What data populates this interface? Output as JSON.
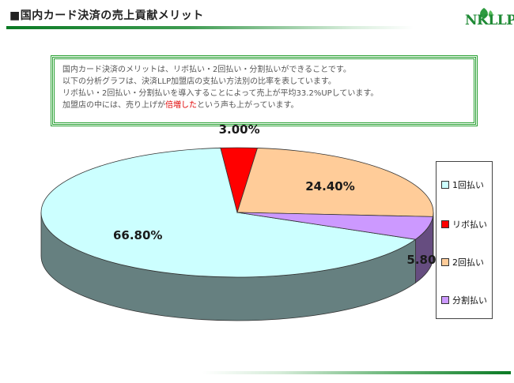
{
  "page": {
    "title": "■国内カード決済の売上貢献メリット",
    "logo": "NKLLP"
  },
  "notes": {
    "line1": "国内カード決済のメリットは、リボ払い・2回払い・分割払いができることです。",
    "line2": "以下の分析グラフは、決済LLP加盟店の支払い方法別の比率を表しています。",
    "line3": "リボ払い・2回払い・分割払いを導入することによって売上が平均33.2%UPしています。",
    "line4_pre": "加盟店の中には、売り上げが",
    "line4_highlight": "倍増した",
    "line4_post": "という声も上がっています。",
    "highlight_color": "#e00000"
  },
  "chart_data": {
    "type": "pie",
    "three_d": true,
    "title": "",
    "legend_position": "right",
    "slices": [
      {
        "name": "1回払い",
        "value": 66.8,
        "label": "66.80%",
        "color": "#ccffff"
      },
      {
        "name": "リボ払い",
        "value": 3.0,
        "label": "3.00%",
        "color": "#ff0000"
      },
      {
        "name": "2回払い",
        "value": 24.4,
        "label": "24.40%",
        "color": "#ffcc99"
      },
      {
        "name": "分割払い",
        "value": 5.8,
        "label": "5.80%",
        "color": "#cc99ff"
      }
    ]
  }
}
